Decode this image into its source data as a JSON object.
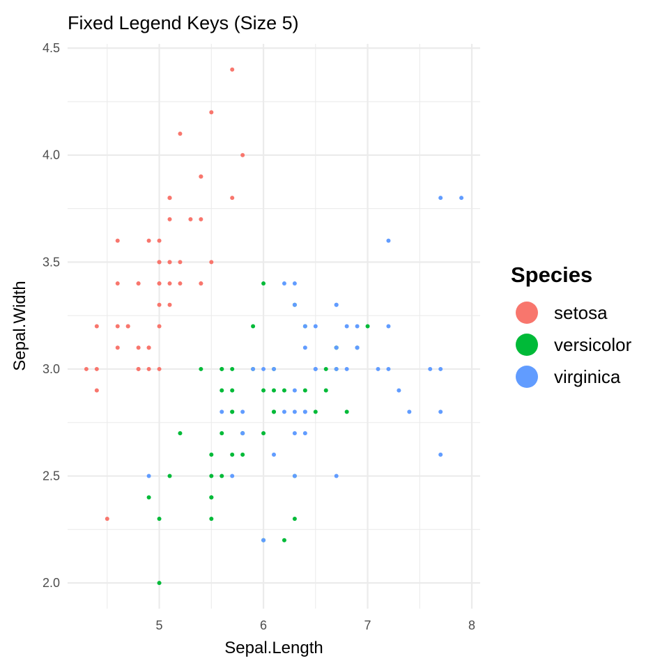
{
  "chart_data": {
    "type": "scatter",
    "title": "Fixed Legend Keys (Size 5)",
    "xlabel": "Sepal.Length",
    "ylabel": "Sepal.Width",
    "xlim": [
      4.12,
      8.08
    ],
    "ylim": [
      1.88,
      4.52
    ],
    "x_ticks": [
      5,
      6,
      7,
      8
    ],
    "x_tick_labels": [
      "5",
      "6",
      "7",
      "8"
    ],
    "y_ticks": [
      2.0,
      2.5,
      3.0,
      3.5,
      4.0,
      4.5
    ],
    "y_tick_labels": [
      "2.0",
      "2.5",
      "3.0",
      "3.5",
      "4.0",
      "4.5"
    ],
    "grid": true,
    "legend": {
      "title": "Species",
      "placement": "right"
    },
    "series": [
      {
        "name": "setosa",
        "color": "#F8766D",
        "points": [
          [
            5.1,
            3.5
          ],
          [
            4.9,
            3.0
          ],
          [
            4.7,
            3.2
          ],
          [
            4.6,
            3.1
          ],
          [
            5.0,
            3.6
          ],
          [
            5.4,
            3.9
          ],
          [
            4.6,
            3.4
          ],
          [
            5.0,
            3.4
          ],
          [
            4.4,
            2.9
          ],
          [
            4.9,
            3.1
          ],
          [
            5.4,
            3.7
          ],
          [
            4.8,
            3.4
          ],
          [
            4.8,
            3.0
          ],
          [
            4.3,
            3.0
          ],
          [
            5.8,
            4.0
          ],
          [
            5.7,
            4.4
          ],
          [
            5.4,
            3.9
          ],
          [
            5.1,
            3.5
          ],
          [
            5.7,
            3.8
          ],
          [
            5.1,
            3.8
          ],
          [
            5.4,
            3.4
          ],
          [
            5.1,
            3.7
          ],
          [
            4.6,
            3.6
          ],
          [
            5.1,
            3.3
          ],
          [
            4.8,
            3.4
          ],
          [
            5.0,
            3.0
          ],
          [
            5.0,
            3.4
          ],
          [
            5.2,
            3.5
          ],
          [
            5.2,
            3.4
          ],
          [
            4.7,
            3.2
          ],
          [
            4.8,
            3.1
          ],
          [
            5.4,
            3.4
          ],
          [
            5.2,
            4.1
          ],
          [
            5.5,
            4.2
          ],
          [
            4.9,
            3.1
          ],
          [
            5.0,
            3.2
          ],
          [
            5.5,
            3.5
          ],
          [
            4.9,
            3.6
          ],
          [
            4.4,
            3.0
          ],
          [
            5.1,
            3.4
          ],
          [
            5.0,
            3.5
          ],
          [
            4.5,
            2.3
          ],
          [
            4.4,
            3.2
          ],
          [
            5.0,
            3.5
          ],
          [
            5.1,
            3.8
          ],
          [
            4.8,
            3.0
          ],
          [
            5.1,
            3.8
          ],
          [
            4.6,
            3.2
          ],
          [
            5.3,
            3.7
          ],
          [
            5.0,
            3.3
          ]
        ]
      },
      {
        "name": "versicolor",
        "color": "#00BA38",
        "points": [
          [
            7.0,
            3.2
          ],
          [
            6.4,
            3.2
          ],
          [
            6.9,
            3.1
          ],
          [
            5.5,
            2.3
          ],
          [
            6.5,
            2.8
          ],
          [
            5.7,
            2.8
          ],
          [
            6.3,
            3.3
          ],
          [
            4.9,
            2.4
          ],
          [
            6.6,
            2.9
          ],
          [
            5.2,
            2.7
          ],
          [
            5.0,
            2.0
          ],
          [
            5.9,
            3.0
          ],
          [
            6.0,
            2.2
          ],
          [
            6.1,
            2.9
          ],
          [
            5.6,
            2.9
          ],
          [
            6.7,
            3.1
          ],
          [
            5.6,
            3.0
          ],
          [
            5.8,
            2.7
          ],
          [
            6.2,
            2.2
          ],
          [
            5.6,
            2.5
          ],
          [
            5.9,
            3.2
          ],
          [
            6.1,
            2.8
          ],
          [
            6.3,
            2.5
          ],
          [
            6.1,
            2.8
          ],
          [
            6.4,
            2.9
          ],
          [
            6.6,
            3.0
          ],
          [
            6.8,
            2.8
          ],
          [
            6.7,
            3.0
          ],
          [
            6.0,
            2.9
          ],
          [
            5.7,
            2.6
          ],
          [
            5.5,
            2.4
          ],
          [
            5.5,
            2.4
          ],
          [
            5.8,
            2.7
          ],
          [
            6.0,
            2.7
          ],
          [
            5.4,
            3.0
          ],
          [
            6.0,
            3.4
          ],
          [
            6.7,
            3.1
          ],
          [
            6.3,
            2.3
          ],
          [
            5.6,
            3.0
          ],
          [
            5.5,
            2.5
          ],
          [
            5.5,
            2.6
          ],
          [
            6.1,
            3.0
          ],
          [
            5.8,
            2.6
          ],
          [
            5.0,
            2.3
          ],
          [
            5.6,
            2.7
          ],
          [
            5.7,
            3.0
          ],
          [
            5.7,
            2.9
          ],
          [
            6.2,
            2.9
          ],
          [
            5.1,
            2.5
          ],
          [
            5.7,
            2.8
          ]
        ]
      },
      {
        "name": "virginica",
        "color": "#619CFF",
        "points": [
          [
            6.3,
            3.3
          ],
          [
            5.8,
            2.7
          ],
          [
            7.1,
            3.0
          ],
          [
            6.3,
            2.9
          ],
          [
            6.5,
            3.0
          ],
          [
            7.6,
            3.0
          ],
          [
            4.9,
            2.5
          ],
          [
            7.3,
            2.9
          ],
          [
            6.7,
            2.5
          ],
          [
            7.2,
            3.6
          ],
          [
            6.5,
            3.2
          ],
          [
            6.4,
            2.7
          ],
          [
            6.8,
            3.0
          ],
          [
            5.7,
            2.5
          ],
          [
            5.8,
            2.8
          ],
          [
            6.4,
            3.2
          ],
          [
            6.5,
            3.0
          ],
          [
            7.7,
            3.8
          ],
          [
            7.7,
            2.6
          ],
          [
            6.0,
            2.2
          ],
          [
            6.9,
            3.2
          ],
          [
            5.6,
            2.8
          ],
          [
            7.7,
            2.8
          ],
          [
            6.3,
            2.7
          ],
          [
            6.7,
            3.3
          ],
          [
            7.2,
            3.2
          ],
          [
            6.2,
            2.8
          ],
          [
            6.1,
            3.0
          ],
          [
            6.4,
            2.8
          ],
          [
            7.2,
            3.0
          ],
          [
            7.4,
            2.8
          ],
          [
            7.9,
            3.8
          ],
          [
            6.4,
            2.8
          ],
          [
            6.3,
            2.8
          ],
          [
            6.1,
            2.6
          ],
          [
            7.7,
            3.0
          ],
          [
            6.3,
            3.4
          ],
          [
            6.4,
            3.1
          ],
          [
            6.0,
            3.0
          ],
          [
            6.9,
            3.1
          ],
          [
            6.7,
            3.1
          ],
          [
            6.9,
            3.1
          ],
          [
            5.8,
            2.7
          ],
          [
            6.8,
            3.2
          ],
          [
            6.7,
            3.3
          ],
          [
            6.7,
            3.0
          ],
          [
            6.3,
            2.5
          ],
          [
            6.5,
            3.0
          ],
          [
            6.2,
            3.4
          ],
          [
            5.9,
            3.0
          ]
        ]
      }
    ]
  }
}
